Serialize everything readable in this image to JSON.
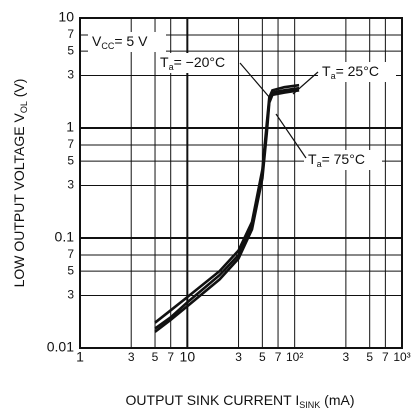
{
  "chart_data": {
    "type": "line",
    "xlabel": [
      "OUTPUT SINK CURRENT  I",
      "SINK",
      " (mA)"
    ],
    "ylabel": [
      "LOW OUTPUT VOLTAGE  V",
      "OL",
      "  (V)"
    ],
    "xscale": "log",
    "yscale": "log",
    "grid": true,
    "color": "#111111",
    "xlim": [
      1,
      1000
    ],
    "ylim": [
      0.01,
      10
    ],
    "xticks": [
      1,
      {
        "value": 3,
        "label": "3"
      },
      {
        "value": 5,
        "label": "5"
      },
      {
        "value": 7,
        "label": "7"
      },
      10,
      {
        "value": 30,
        "label": "3"
      },
      {
        "value": 50,
        "label": "5"
      },
      {
        "value": 70,
        "label": "7"
      },
      {
        "value": 100,
        "label": "10²"
      },
      {
        "value": 300,
        "label": "3"
      },
      {
        "value": 500,
        "label": "5"
      },
      {
        "value": 700,
        "label": "7"
      },
      {
        "value": 1000,
        "label": "10³"
      }
    ],
    "yticks": [
      10,
      {
        "value": 7,
        "label": "7"
      },
      {
        "value": 5,
        "label": "5"
      },
      {
        "value": 3,
        "label": "3"
      },
      1,
      {
        "value": 0.7,
        "label": "7"
      },
      {
        "value": 0.5,
        "label": "5"
      },
      {
        "value": 0.3,
        "label": "3"
      },
      0.1,
      {
        "value": 0.07,
        "label": "7"
      },
      {
        "value": 0.05,
        "label": "5"
      },
      {
        "value": 0.03,
        "label": "3"
      },
      0.01
    ],
    "annotations": [
      {
        "parts": [
          "V",
          "CC",
          "= 5 V"
        ]
      },
      {
        "parts": [
          "T",
          "a",
          "= −20°C"
        ]
      },
      {
        "parts": [
          "T",
          "a",
          "= 25°C"
        ]
      },
      {
        "parts": [
          "T",
          "a",
          "= 75°C"
        ]
      }
    ],
    "series": [
      {
        "color": "#111111",
        "x": [
          5,
          7,
          10,
          20,
          30,
          40,
          50,
          55,
          58,
          62,
          80,
          110
        ],
        "values": [
          0.014,
          0.018,
          0.024,
          0.042,
          0.065,
          0.12,
          0.35,
          0.9,
          1.7,
          2.0,
          2.1,
          2.2
        ]
      },
      {
        "color": "#111111",
        "x": [
          5,
          7,
          10,
          20,
          30,
          40,
          50,
          55,
          58,
          62,
          80,
          110
        ],
        "values": [
          0.015,
          0.019,
          0.026,
          0.046,
          0.07,
          0.13,
          0.38,
          1.0,
          1.8,
          2.1,
          2.2,
          2.3
        ]
      },
      {
        "color": "#111111",
        "x": [
          5,
          7,
          10,
          20,
          30,
          40,
          50,
          55,
          58,
          62,
          80,
          110
        ],
        "values": [
          0.017,
          0.022,
          0.029,
          0.05,
          0.077,
          0.14,
          0.42,
          1.1,
          1.9,
          2.2,
          2.35,
          2.45
        ]
      }
    ]
  }
}
